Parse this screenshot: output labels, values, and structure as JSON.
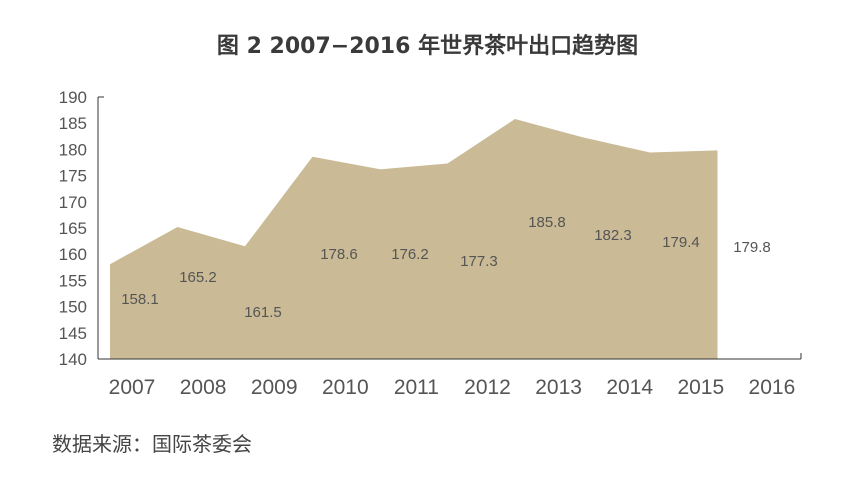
{
  "title": "图 2 2007−2016 年世界茶叶出口趋势图",
  "source": "数据来源：国际茶委会",
  "colors": {
    "area_fill": "#cabb96",
    "axis": "#333333",
    "tick_text": "#555555",
    "data_label": "#555555",
    "title": "#3a3a3a"
  },
  "chart_data": {
    "type": "area",
    "title": "图 2 2007−2016 年世界茶叶出口趋势图",
    "xlabel": "",
    "ylabel": "",
    "categories": [
      "2007",
      "2008",
      "2009",
      "2010",
      "2011",
      "2012",
      "2013",
      "2014",
      "2015",
      "2016"
    ],
    "values": [
      158.1,
      165.2,
      161.5,
      178.6,
      176.2,
      177.3,
      185.8,
      182.3,
      179.4,
      179.8
    ],
    "data_labels": [
      "158.1",
      "165.2",
      "161.5",
      "178.6",
      "176.2",
      "177.3",
      "185.8",
      "182.3",
      "179.4",
      "179.8"
    ],
    "ylim": [
      140,
      190
    ],
    "yticks": [
      140,
      145,
      150,
      155,
      160,
      165,
      170,
      175,
      180,
      185,
      190
    ],
    "grid": false,
    "legend": "none"
  }
}
